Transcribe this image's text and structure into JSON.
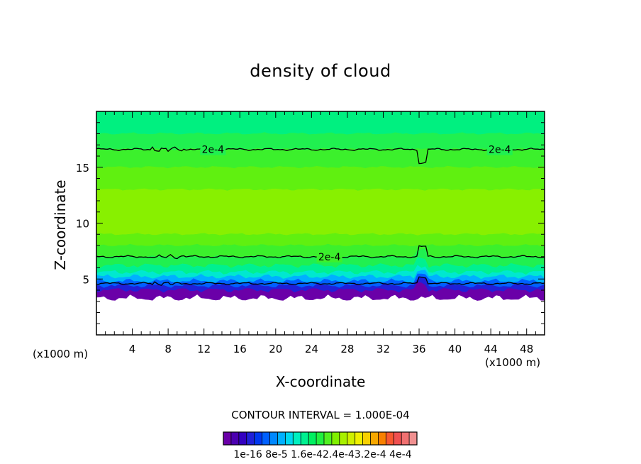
{
  "chart_data": {
    "type": "heatmap",
    "title": "density of cloud",
    "xlabel": "X-coordinate",
    "ylabel": "Z-coordinate",
    "x_unit_left": "(x1000 m)",
    "x_unit_right": "(x1000 m)",
    "xlim": [
      0,
      50
    ],
    "ylim": [
      0,
      20
    ],
    "x_ticks": [
      4,
      8,
      12,
      16,
      20,
      24,
      28,
      32,
      36,
      40,
      44,
      48
    ],
    "y_ticks": [
      5,
      10,
      15
    ],
    "contour_interval_text": "CONTOUR INTERVAL = 1.000E-04",
    "contour_labels": [
      "2e-4",
      "2e-4",
      "2e-4"
    ],
    "contour_label_positions": [
      [
        13,
        16.6
      ],
      [
        45,
        16.6
      ],
      [
        26,
        7.0
      ]
    ],
    "colorbar_labels_text": "1e-16 8e-5 1.6e-42.4e-43.2e-4 4e-4",
    "colorbar_colors": [
      "#6a00a8",
      "#4b00b0",
      "#3300c0",
      "#2020d8",
      "#0038f0",
      "#0060ff",
      "#0088ff",
      "#00b0ff",
      "#00d8f0",
      "#00f0c0",
      "#00f090",
      "#00f060",
      "#20f040",
      "#50f020",
      "#80f000",
      "#a8f000",
      "#d0f000",
      "#f0f000",
      "#f8d000",
      "#f8a800",
      "#f88000",
      "#f85830",
      "#f05050",
      "#f07070",
      "#f09090"
    ],
    "layers": [
      {
        "z_bottom": 18.0,
        "z_top": 20.0,
        "value": 0.00012,
        "color": "#00f080"
      },
      {
        "z_bottom": 16.6,
        "z_top": 18.0,
        "value": 0.00016,
        "color": "#20f050"
      },
      {
        "z_bottom": 15.0,
        "z_top": 16.6,
        "value": 0.00022,
        "color": "#3cf02c"
      },
      {
        "z_bottom": 13.0,
        "z_top": 15.0,
        "value": 0.00026,
        "color": "#60f010"
      },
      {
        "z_bottom": 9.0,
        "z_top": 13.0,
        "value": 0.0003,
        "color": "#88f000"
      },
      {
        "z_bottom": 8.0,
        "z_top": 9.0,
        "value": 0.00026,
        "color": "#60f010"
      },
      {
        "z_bottom": 7.0,
        "z_top": 8.0,
        "value": 0.00022,
        "color": "#3cf02c"
      },
      {
        "z_bottom": 6.2,
        "z_top": 7.0,
        "value": 0.00016,
        "color": "#20f050"
      },
      {
        "z_bottom": 5.6,
        "z_top": 6.2,
        "value": 0.00012,
        "color": "#00f090"
      },
      {
        "z_bottom": 5.2,
        "z_top": 5.6,
        "value": 8e-05,
        "color": "#00e8d0"
      },
      {
        "z_bottom": 4.8,
        "z_top": 5.2,
        "value": 6e-05,
        "color": "#00b0ff"
      },
      {
        "z_bottom": 4.4,
        "z_top": 4.8,
        "value": 4e-05,
        "color": "#0060ff"
      },
      {
        "z_bottom": 4.0,
        "z_top": 4.4,
        "value": 2e-05,
        "color": "#2020d8"
      },
      {
        "z_bottom": 3.3,
        "z_top": 4.0,
        "value": 1e-05,
        "color": "#6a00a8"
      }
    ]
  }
}
